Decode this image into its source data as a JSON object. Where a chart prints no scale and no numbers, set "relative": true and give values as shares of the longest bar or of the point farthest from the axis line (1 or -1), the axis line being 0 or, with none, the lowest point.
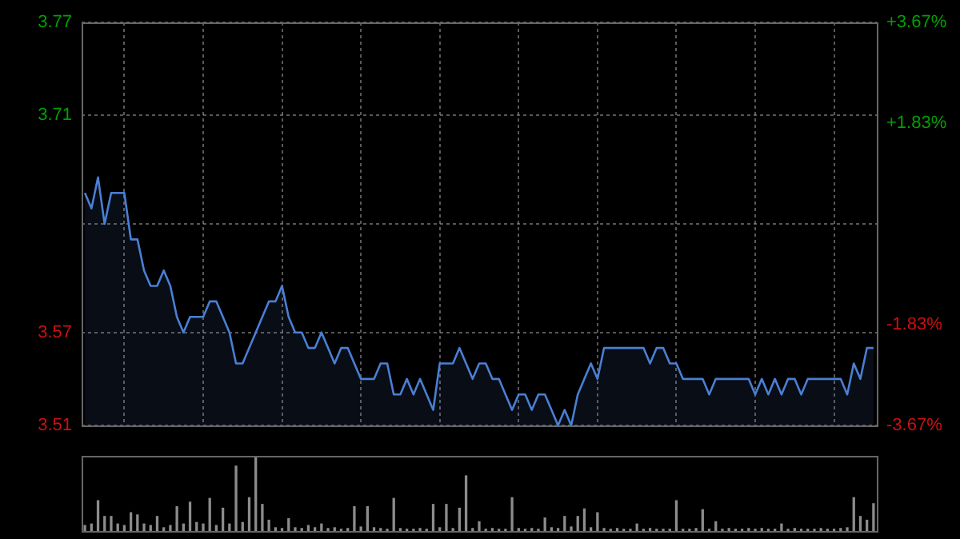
{
  "chart_data": [
    {
      "type": "area",
      "categories": [
        null,
        null,
        null,
        null,
        null,
        null,
        null,
        null,
        null,
        null,
        null,
        null,
        null,
        null,
        null,
        null,
        null,
        null,
        null,
        null,
        null,
        null,
        null,
        null,
        null,
        null,
        null,
        null,
        null,
        null,
        null,
        null,
        null,
        null,
        null,
        null,
        null,
        null,
        null,
        null,
        null,
        null,
        null,
        null,
        null,
        null,
        null,
        null,
        null,
        null,
        null,
        null,
        null,
        null,
        null,
        null,
        null,
        null,
        null,
        null,
        null,
        null,
        null,
        null,
        null,
        null,
        null,
        null,
        null,
        null,
        null,
        null,
        null,
        null,
        null,
        null,
        null,
        null,
        null,
        null,
        null,
        null,
        null,
        null,
        null,
        null,
        null,
        null,
        null,
        null,
        null,
        null,
        null,
        null,
        null,
        null,
        null,
        null,
        null,
        null,
        null,
        null,
        null,
        null,
        null,
        null,
        null,
        null,
        null,
        null,
        null,
        null,
        null,
        null,
        null,
        null,
        null,
        null,
        null,
        null,
        null
      ],
      "series": [
        {
          "color": "#4a7fd4",
          "values": [
            3.66,
            3.65,
            3.67,
            3.64,
            3.66,
            3.66,
            3.66,
            3.63,
            3.63,
            3.61,
            3.6,
            3.6,
            3.61,
            3.6,
            3.58,
            3.57,
            3.58,
            3.58,
            3.58,
            3.59,
            3.59,
            3.58,
            3.57,
            3.55,
            3.55,
            3.56,
            3.57,
            3.58,
            3.59,
            3.59,
            3.6,
            3.58,
            3.57,
            3.57,
            3.56,
            3.56,
            3.57,
            3.56,
            3.55,
            3.56,
            3.56,
            3.55,
            3.54,
            3.54,
            3.54,
            3.55,
            3.55,
            3.53,
            3.53,
            3.54,
            3.53,
            3.54,
            3.53,
            3.52,
            3.55,
            3.55,
            3.55,
            3.56,
            3.55,
            3.54,
            3.55,
            3.55,
            3.54,
            3.54,
            3.53,
            3.52,
            3.53,
            3.53,
            3.52,
            3.53,
            3.53,
            3.52,
            3.51,
            3.52,
            3.51,
            3.53,
            3.54,
            3.55,
            3.54,
            3.56,
            3.56,
            3.56,
            3.56,
            3.56,
            3.56,
            3.56,
            3.55,
            3.56,
            3.56,
            3.55,
            3.55,
            3.54,
            3.54,
            3.54,
            3.54,
            3.53,
            3.54,
            3.54,
            3.54,
            3.54,
            3.54,
            3.54,
            3.53,
            3.54,
            3.53,
            3.54,
            3.53,
            3.54,
            3.54,
            3.53,
            3.54,
            3.54,
            3.54,
            3.54,
            3.54,
            3.54,
            3.53,
            3.55,
            3.54,
            3.56,
            3.56
          ]
        }
      ],
      "ylim": [
        3.51,
        3.77
      ],
      "yticks": [
        3.51,
        3.57,
        {
          "value": 3.64,
          "label": null
        },
        3.71,
        3.77
      ],
      "y2lim": [
        -3.67,
        3.67
      ],
      "y2ticks": [
        {
          "value": -3.67,
          "label": "-3.67%"
        },
        {
          "value": -1.83,
          "label": "-1.83%"
        },
        {
          "value": 1.83,
          "label": "+1.83%"
        },
        {
          "value": 3.67,
          "label": "+3.67%"
        }
      ],
      "grid": true
    },
    {
      "type": "bar",
      "relative": true,
      "categories": [
        null,
        null,
        null,
        null,
        null,
        null,
        null,
        null,
        null,
        null,
        null,
        null,
        null,
        null,
        null,
        null,
        null,
        null,
        null,
        null,
        null,
        null,
        null,
        null,
        null,
        null,
        null,
        null,
        null,
        null,
        null,
        null,
        null,
        null,
        null,
        null,
        null,
        null,
        null,
        null,
        null,
        null,
        null,
        null,
        null,
        null,
        null,
        null,
        null,
        null,
        null,
        null,
        null,
        null,
        null,
        null,
        null,
        null,
        null,
        null,
        null,
        null,
        null,
        null,
        null,
        null,
        null,
        null,
        null,
        null,
        null,
        null,
        null,
        null,
        null,
        null,
        null,
        null,
        null,
        null,
        null,
        null,
        null,
        null,
        null,
        null,
        null,
        null,
        null,
        null,
        null,
        null,
        null,
        null,
        null,
        null,
        null,
        null,
        null,
        null,
        null,
        null,
        null,
        null,
        null,
        null,
        null,
        null,
        null,
        null,
        null,
        null,
        null,
        null,
        null,
        null,
        null,
        null,
        null,
        null,
        null
      ],
      "series": [
        {
          "color": "#8c8c8c",
          "values": [
            0.08,
            0.1,
            0.41,
            0.2,
            0.2,
            0.1,
            0.08,
            0.25,
            0.22,
            0.1,
            0.08,
            0.2,
            0.05,
            0.08,
            0.33,
            0.1,
            0.39,
            0.12,
            0.1,
            0.44,
            0.08,
            0.31,
            0.1,
            0.87,
            0.12,
            0.45,
            1.0,
            0.36,
            0.15,
            0.05,
            0.04,
            0.17,
            0.05,
            0.04,
            0.08,
            0.05,
            0.1,
            0.04,
            0.05,
            0.03,
            0.04,
            0.33,
            0.06,
            0.33,
            0.05,
            0.04,
            0.03,
            0.44,
            0.04,
            0.03,
            0.03,
            0.04,
            0.03,
            0.36,
            0.05,
            0.36,
            0.04,
            0.31,
            0.74,
            0.04,
            0.13,
            0.03,
            0.04,
            0.03,
            0.03,
            0.45,
            0.04,
            0.03,
            0.04,
            0.03,
            0.18,
            0.05,
            0.04,
            0.2,
            0.06,
            0.2,
            0.3,
            0.05,
            0.25,
            0.04,
            0.03,
            0.04,
            0.03,
            0.03,
            0.1,
            0.03,
            0.04,
            0.03,
            0.03,
            0.03,
            0.41,
            0.03,
            0.03,
            0.04,
            0.29,
            0.03,
            0.13,
            0.03,
            0.04,
            0.03,
            0.03,
            0.04,
            0.03,
            0.04,
            0.03,
            0.03,
            0.1,
            0.03,
            0.04,
            0.03,
            0.03,
            0.03,
            0.04,
            0.03,
            0.03,
            0.04,
            0.05,
            0.45,
            0.2,
            0.15,
            0.37
          ]
        }
      ]
    }
  ]
}
